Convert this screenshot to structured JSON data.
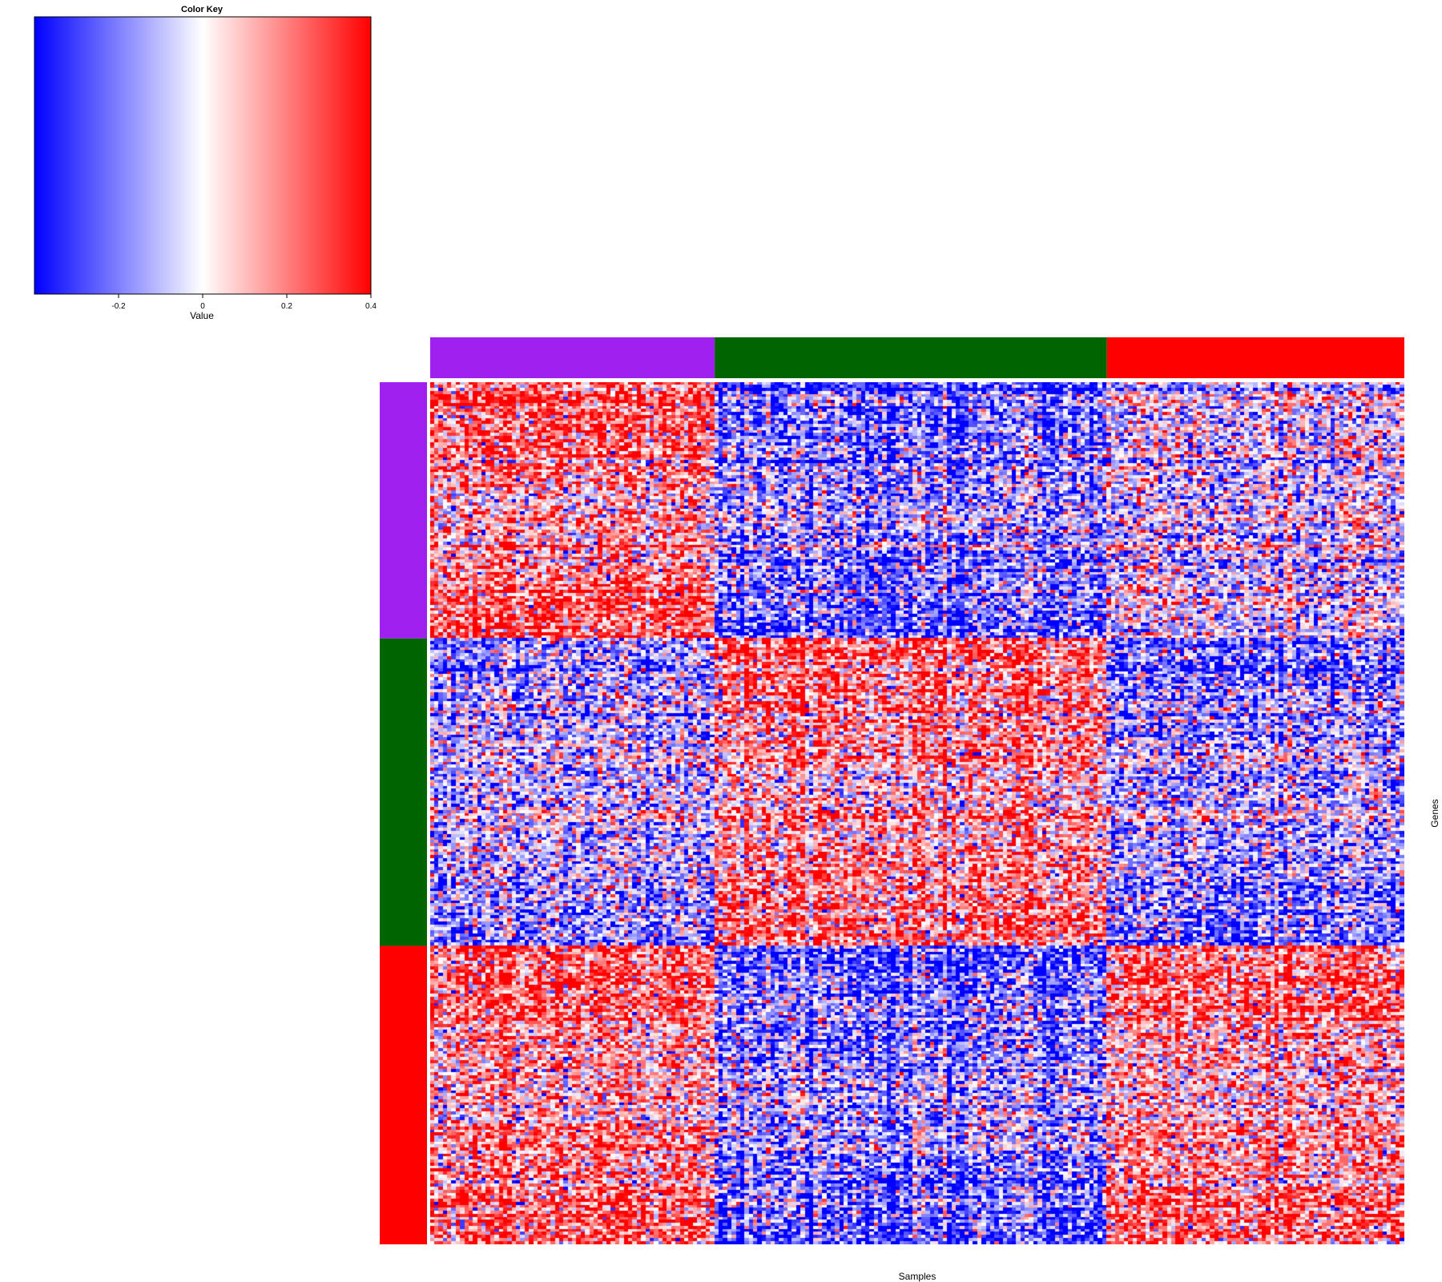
{
  "chart_data": {
    "type": "heatmap",
    "xlabel": "Samples",
    "ylabel": "Genes",
    "color_key": {
      "title": "Color Key",
      "xlabel": "Value",
      "ticks": [
        -0.2,
        0,
        0.2,
        0.4
      ],
      "tick_labels": [
        "-0.2",
        "0",
        "0.2",
        "0.4"
      ],
      "range": [
        -0.4,
        0.4
      ],
      "low_color": "#0000ff",
      "mid_color": "#ffffff",
      "high_color": "#ff0000"
    },
    "column_groups": [
      {
        "color": "#a020f0",
        "count": 66
      },
      {
        "color": "#006400",
        "count": 91
      },
      {
        "color": "#ff0000",
        "count": 69
      }
    ],
    "row_groups": [
      {
        "color": "#a020f0",
        "count": 85
      },
      {
        "color": "#006400",
        "count": 102
      },
      {
        "color": "#ff0000",
        "count": 99
      }
    ],
    "value_range": [
      -0.4,
      0.4
    ],
    "block_pattern_note_values": {
      "rows": [
        "purple",
        "green",
        "red"
      ],
      "cols": [
        "purple",
        "green",
        "red"
      ]
    },
    "block_means": [
      [
        0.3,
        -0.3,
        -0.05
      ],
      [
        -0.15,
        0.25,
        -0.22
      ],
      [
        0.28,
        -0.3,
        0.25
      ]
    ]
  }
}
